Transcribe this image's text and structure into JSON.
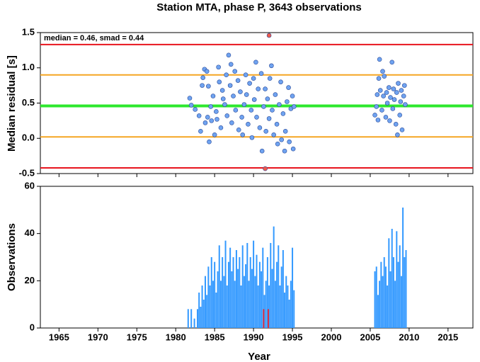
{
  "chart_data": [
    {
      "type": "scatter",
      "title": "Station MTA, phase P, 3643 observations",
      "ylabel": "Median residual [s]",
      "annotation": "median = 0.46, smad = 0.44",
      "xlim": [
        1962.6,
        2018.2
      ],
      "xticks": [
        1965,
        1970,
        1975,
        1980,
        1985,
        1990,
        1995,
        2000,
        2005,
        2010,
        2015
      ],
      "ylim": [
        -0.5,
        1.5
      ],
      "yticks": [
        -0.5,
        {
          "value": 0,
          "label": "0.0"
        },
        0.5,
        {
          "value": 1,
          "label": "1.0"
        },
        1.5
      ],
      "reference_lines": [
        {
          "value": 1.33,
          "color": "#e8141e"
        },
        {
          "value": -0.42,
          "color": "#e8141e"
        },
        {
          "value": 0.9,
          "color": "#f5a623"
        },
        {
          "value": 0.02,
          "color": "#f5a623"
        },
        {
          "value": 0.46,
          "color": "#2ee82e"
        }
      ],
      "series": [
        {
          "color": "#6fa3f0",
          "x": [
            1981.8,
            1982.0,
            1982.5,
            1983.0,
            1983.2,
            1983.4,
            1983.5,
            1983.7,
            1983.8,
            1984.0,
            1984.1,
            1984.2,
            1984.3,
            1984.5,
            1984.6,
            1984.8,
            1985.0,
            1985.2,
            1985.3,
            1985.5,
            1985.6,
            1985.8,
            1986.0,
            1986.1,
            1986.3,
            1986.5,
            1986.6,
            1986.8,
            1987.0,
            1987.1,
            1987.2,
            1987.4,
            1987.6,
            1987.7,
            1988.0,
            1988.1,
            1988.3,
            1988.5,
            1988.6,
            1988.8,
            1989.0,
            1989.1,
            1989.3,
            1989.5,
            1989.7,
            1989.8,
            1990.0,
            1990.1,
            1990.3,
            1990.4,
            1990.6,
            1990.8,
            1991.0,
            1991.1,
            1991.3,
            1991.5,
            1991.6,
            1991.8,
            1992.0,
            1992.1,
            1992.3,
            1992.4,
            1992.6,
            1992.8,
            1993.0,
            1993.1,
            1993.3,
            1993.5,
            1993.6,
            1993.8,
            1994.0,
            1994.1,
            1994.3,
            1994.5,
            1994.6,
            1994.8,
            1995.0,
            1995.1,
            1995.2,
            2005.6,
            2005.8,
            2005.9,
            2006.0,
            2006.1,
            2006.2,
            2006.3,
            2006.5,
            2006.6,
            2006.7,
            2006.8,
            2007.0,
            2007.1,
            2007.2,
            2007.4,
            2007.5,
            2007.6,
            2007.8,
            2007.9,
            2008.0,
            2008.1,
            2008.3,
            2008.4,
            2008.5,
            2008.6,
            2008.8,
            2008.9,
            2009.0,
            2009.1,
            2009.3,
            2009.4,
            2009.5
          ],
          "values": [
            0.57,
            0.47,
            0.41,
            0.32,
            0.1,
            0.75,
            0.86,
            0.98,
            0.22,
            0.95,
            0.3,
            0.74,
            -0.05,
            0.45,
            0.25,
            0.6,
            0.05,
            0.38,
            0.27,
            1.01,
            0.8,
            0.15,
            0.68,
            0.56,
            0.48,
            0.9,
            0.32,
            1.18,
            0.75,
            1.05,
            0.22,
            0.6,
            0.95,
            0.4,
            0.82,
            0.12,
            0.66,
            0.3,
            0.05,
            0.48,
            0.9,
            0.62,
            0.2,
            0.78,
            0.4,
            0.01,
            0.85,
            0.55,
            1.08,
            0.3,
            0.7,
            0.15,
            0.92,
            -0.18,
            0.45,
            0.7,
            0.1,
            0.56,
            0.28,
            0.85,
            1.03,
            0.4,
            0.05,
            0.62,
            0.2,
            -0.08,
            0.48,
            0.8,
            -0.02,
            0.35,
            -0.18,
            0.1,
            0.52,
            0.72,
            -0.05,
            0.42,
            0.6,
            -0.15,
            0.45,
            0.33,
            0.45,
            0.62,
            0.26,
            0.85,
            1.12,
            0.68,
            0.4,
            0.95,
            0.6,
            0.88,
            0.3,
            0.65,
            0.5,
            0.72,
            0.25,
            0.58,
            1.08,
            0.42,
            0.7,
            0.55,
            0.2,
            0.65,
            0.05,
            0.78,
            0.33,
            0.52,
            0.68,
            0.12,
            0.6,
            0.75,
            0.48
          ]
        },
        {
          "color": "#f05a4a",
          "x": [
            1992.0,
            1991.5
          ],
          "values": [
            1.46,
            -0.43
          ]
        }
      ]
    },
    {
      "type": "bar",
      "ylabel": "Observations",
      "xlabel": "Year",
      "xlim": [
        1962.6,
        2018.2
      ],
      "xticks": [
        1965,
        1970,
        1975,
        1980,
        1985,
        1990,
        1995,
        2000,
        2005,
        2010,
        2015
      ],
      "ylim": [
        0,
        60
      ],
      "yticks": [
        0,
        20,
        40,
        60
      ],
      "series": [
        {
          "color": "#3399ff",
          "x": [
            1981.6,
            1982.0,
            1982.4,
            1982.8,
            1983.0,
            1983.2,
            1983.4,
            1983.6,
            1983.8,
            1984.0,
            1984.2,
            1984.4,
            1984.6,
            1984.8,
            1985.0,
            1985.2,
            1985.4,
            1985.6,
            1985.8,
            1986.0,
            1986.2,
            1986.4,
            1986.6,
            1986.8,
            1987.0,
            1987.2,
            1987.4,
            1987.6,
            1987.8,
            1988.0,
            1988.2,
            1988.4,
            1988.6,
            1988.8,
            1989.0,
            1989.2,
            1989.4,
            1989.6,
            1989.8,
            1990.0,
            1990.2,
            1990.4,
            1990.6,
            1990.8,
            1991.0,
            1991.2,
            1991.4,
            1991.6,
            1991.8,
            1992.0,
            1992.2,
            1992.4,
            1992.6,
            1992.8,
            1993.0,
            1993.2,
            1993.4,
            1993.6,
            1993.8,
            1994.0,
            1994.2,
            1994.4,
            1994.6,
            1994.8,
            1995.0,
            1995.2,
            2005.6,
            2005.8,
            2006.0,
            2006.2,
            2006.4,
            2006.6,
            2006.8,
            2007.0,
            2007.2,
            2007.4,
            2007.6,
            2007.8,
            2008.0,
            2008.2,
            2008.4,
            2008.6,
            2008.8,
            2009.0,
            2009.2,
            2009.4,
            2009.6
          ],
          "values": [
            8,
            8,
            4,
            8,
            15,
            9,
            18,
            12,
            22,
            14,
            26,
            18,
            30,
            20,
            28,
            15,
            24,
            35,
            20,
            30,
            22,
            37,
            18,
            28,
            34,
            24,
            30,
            20,
            33,
            25,
            30,
            18,
            35,
            22,
            27,
            36,
            20,
            30,
            25,
            37,
            22,
            31,
            18,
            28,
            24,
            34,
            14,
            20,
            30,
            18,
            36,
            25,
            43,
            20,
            28,
            35,
            18,
            26,
            33,
            15,
            22,
            18,
            12,
            20,
            34,
            16,
            24,
            26,
            14,
            20,
            28,
            22,
            30,
            26,
            18,
            38,
            24,
            42,
            30,
            20,
            41,
            28,
            35,
            22,
            51,
            30,
            33
          ]
        },
        {
          "color": "#e03040",
          "x": [
            1991.3,
            1991.9
          ],
          "values": [
            8,
            8
          ]
        }
      ]
    }
  ]
}
